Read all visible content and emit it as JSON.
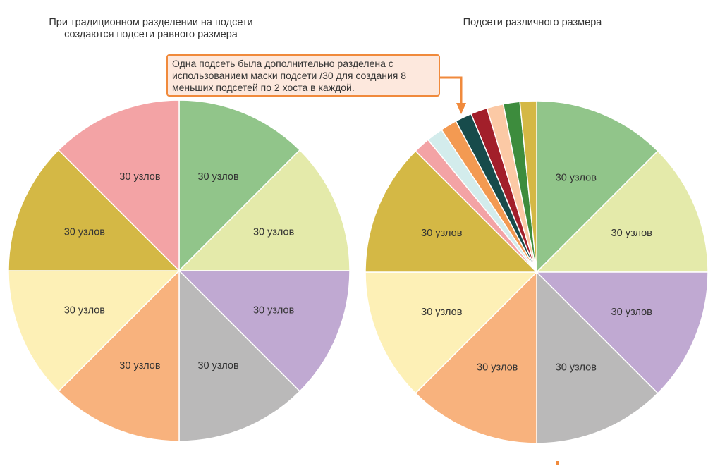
{
  "left_chart": {
    "title_lines": [
      "При традиционном разделении на подсети",
      "создаются подсети равного размера"
    ],
    "slices": [
      {
        "label": "30 узлов",
        "color": "#91c58a"
      },
      {
        "label": "30 узлов",
        "color": "#e4eaaa"
      },
      {
        "label": "30 узлов",
        "color": "#c0a9d2"
      },
      {
        "label": "30 узлов",
        "color": "#bab9b9"
      },
      {
        "label": "30 узлов",
        "color": "#f8b27d"
      },
      {
        "label": "30 узлов",
        "color": "#fdf0b6"
      },
      {
        "label": "30 узлов",
        "color": "#d4b845"
      },
      {
        "label": "30 узлов",
        "color": "#f3a3a5"
      }
    ]
  },
  "right_chart": {
    "title_lines": [
      "Подсети различного размера"
    ],
    "slices": [
      {
        "label": "30 узлов",
        "color": "#91c58a"
      },
      {
        "label": "30 узлов",
        "color": "#e4eaaa"
      },
      {
        "label": "30 узлов",
        "color": "#c0a9d2"
      },
      {
        "label": "30 узлов",
        "color": "#bab9b9"
      },
      {
        "label": "30 узлов",
        "color": "#f8b27d"
      },
      {
        "label": "30 узлов",
        "color": "#fdf0b6"
      },
      {
        "label": "30 узлов",
        "color": "#d4b845"
      }
    ],
    "small_slices": [
      {
        "color": "#f3a3a5"
      },
      {
        "color": "#d3ecec"
      },
      {
        "color": "#f39a52"
      },
      {
        "color": "#174b4b"
      },
      {
        "color": "#a21f2a"
      },
      {
        "color": "#fbc9a5"
      },
      {
        "color": "#3d8c3d"
      },
      {
        "color": "#d4b845"
      }
    ]
  },
  "callout": {
    "lines": [
      "Одна подсеть была дополнительно разделена с",
      "использованием маски подсети /30 для создания 8",
      "меньших подсетей по 2 хоста в каждой."
    ],
    "border_color": "#f08a3c",
    "background_color": "#fde8dd"
  }
}
